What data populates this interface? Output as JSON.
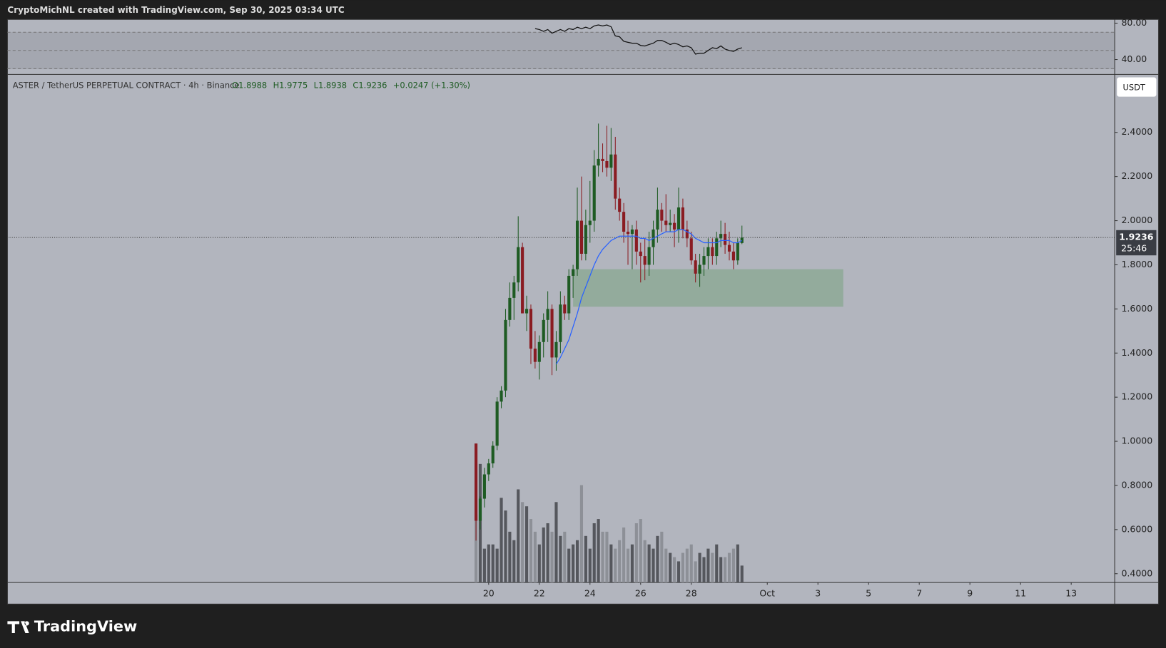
{
  "header": {
    "caption": "CryptoMichNL created with TradingView.com, Sep 30, 2025 03:34 UTC",
    "logo": "TradingView"
  },
  "chart_data": {
    "type": "candlestick",
    "symbol": "ASTER / TetherUS PERPETUAL CONTRACT · 4h · Binance",
    "ohlc_labels": [
      "O1.8988",
      "H1.9775",
      "L1.8938",
      "C1.9236",
      "+0.0247 (+1.30%)"
    ],
    "currency": "USDT",
    "last_price": 1.9236,
    "last_price_label": "1.9236",
    "countdown": "25:46",
    "up_color": "#1e5b23",
    "down_color": "#8a1c22",
    "ma_color": "#2962ff",
    "zone_color": "#8da996",
    "candles": [
      [
        0.99,
        0.99,
        0.55,
        0.64
      ],
      [
        0.64,
        0.75,
        0.6,
        0.74
      ],
      [
        0.74,
        0.88,
        0.7,
        0.85
      ],
      [
        0.85,
        0.92,
        0.82,
        0.9
      ],
      [
        0.9,
        1.0,
        0.88,
        0.98
      ],
      [
        0.98,
        1.2,
        0.96,
        1.18
      ],
      [
        1.18,
        1.25,
        1.15,
        1.23
      ],
      [
        1.23,
        1.6,
        1.2,
        1.55
      ],
      [
        1.55,
        1.72,
        1.52,
        1.65
      ],
      [
        1.65,
        1.75,
        1.55,
        1.72
      ],
      [
        1.72,
        2.02,
        1.68,
        1.88
      ],
      [
        1.88,
        1.9,
        1.58,
        1.58
      ],
      [
        1.58,
        1.66,
        1.5,
        1.6
      ],
      [
        1.6,
        1.62,
        1.35,
        1.42
      ],
      [
        1.42,
        1.5,
        1.33,
        1.36
      ],
      [
        1.36,
        1.48,
        1.28,
        1.45
      ],
      [
        1.45,
        1.58,
        1.38,
        1.55
      ],
      [
        1.55,
        1.68,
        1.45,
        1.6
      ],
      [
        1.6,
        1.62,
        1.3,
        1.38
      ],
      [
        1.38,
        1.5,
        1.32,
        1.45
      ],
      [
        1.45,
        1.68,
        1.4,
        1.62
      ],
      [
        1.62,
        1.66,
        1.55,
        1.58
      ],
      [
        1.58,
        1.78,
        1.55,
        1.75
      ],
      [
        1.75,
        1.8,
        1.65,
        1.78
      ],
      [
        1.78,
        2.15,
        1.75,
        2.0
      ],
      [
        2.0,
        2.2,
        1.82,
        1.85
      ],
      [
        1.85,
        2.05,
        1.82,
        1.98
      ],
      [
        1.98,
        2.18,
        1.9,
        2.0
      ],
      [
        2.0,
        2.32,
        1.95,
        2.25
      ],
      [
        2.25,
        2.44,
        2.2,
        2.28
      ],
      [
        2.28,
        2.35,
        2.22,
        2.27
      ],
      [
        2.27,
        2.43,
        2.2,
        2.24
      ],
      [
        2.24,
        2.42,
        2.18,
        2.3
      ],
      [
        2.3,
        2.38,
        2.05,
        2.1
      ],
      [
        2.1,
        2.15,
        2.0,
        2.04
      ],
      [
        2.04,
        2.08,
        1.9,
        1.95
      ],
      [
        1.95,
        2.0,
        1.8,
        1.94
      ],
      [
        1.94,
        1.98,
        1.78,
        1.96
      ],
      [
        1.96,
        2.0,
        1.8,
        1.86
      ],
      [
        1.86,
        1.9,
        1.72,
        1.84
      ],
      [
        1.84,
        1.92,
        1.73,
        1.8
      ],
      [
        1.8,
        1.95,
        1.75,
        1.88
      ],
      [
        1.88,
        2.0,
        1.8,
        1.96
      ],
      [
        1.96,
        2.15,
        1.9,
        2.05
      ],
      [
        2.05,
        2.08,
        1.95,
        2.0
      ],
      [
        2.0,
        2.12,
        1.95,
        1.98
      ],
      [
        1.98,
        2.05,
        1.95,
        1.99
      ],
      [
        1.99,
        2.03,
        1.88,
        1.96
      ],
      [
        1.96,
        2.15,
        1.9,
        2.06
      ],
      [
        2.06,
        2.1,
        1.92,
        1.96
      ],
      [
        1.96,
        2.0,
        1.88,
        1.92
      ],
      [
        1.92,
        1.95,
        1.8,
        1.82
      ],
      [
        1.82,
        1.85,
        1.72,
        1.76
      ],
      [
        1.76,
        1.85,
        1.7,
        1.8
      ],
      [
        1.8,
        1.88,
        1.75,
        1.84
      ],
      [
        1.84,
        1.92,
        1.78,
        1.88
      ],
      [
        1.88,
        1.92,
        1.8,
        1.84
      ],
      [
        1.84,
        1.95,
        1.8,
        1.92
      ],
      [
        1.92,
        2.0,
        1.88,
        1.94
      ],
      [
        1.94,
        1.99,
        1.85,
        1.89
      ],
      [
        1.89,
        1.95,
        1.82,
        1.86
      ],
      [
        1.86,
        1.9,
        1.78,
        1.82
      ],
      [
        1.82,
        1.92,
        1.8,
        1.9
      ],
      [
        1.8988,
        1.9775,
        1.8938,
        1.9236
      ]
    ],
    "volume": [
      80,
      140,
      40,
      45,
      45,
      40,
      100,
      85,
      60,
      50,
      110,
      95,
      90,
      75,
      60,
      45,
      65,
      70,
      60,
      95,
      55,
      60,
      40,
      45,
      50,
      115,
      55,
      40,
      70,
      75,
      60,
      60,
      45,
      40,
      50,
      65,
      40,
      45,
      70,
      75,
      50,
      45,
      40,
      55,
      60,
      40,
      35,
      30,
      25,
      35,
      40,
      45,
      25,
      35,
      30,
      40,
      35,
      45,
      30,
      30,
      35,
      40,
      45,
      20
    ],
    "volume_ylim": [
      0,
      600
    ],
    "ma": [
      null,
      null,
      null,
      null,
      null,
      null,
      null,
      null,
      null,
      null,
      null,
      null,
      null,
      null,
      null,
      null,
      null,
      null,
      null,
      1.35,
      1.38,
      1.42,
      1.46,
      1.52,
      1.58,
      1.65,
      1.7,
      1.75,
      1.8,
      1.84,
      1.87,
      1.89,
      1.91,
      1.92,
      1.93,
      1.93,
      1.93,
      1.93,
      1.93,
      1.92,
      1.92,
      1.91,
      1.92,
      1.93,
      1.94,
      1.95,
      1.95,
      1.95,
      1.96,
      1.96,
      1.95,
      1.94,
      1.92,
      1.91,
      1.9,
      1.9,
      1.9,
      1.9,
      1.91,
      1.91,
      1.91,
      1.9,
      1.9,
      1.91
    ],
    "zone": {
      "x": [
        23,
        87
      ],
      "y": [
        1.61,
        1.78
      ]
    },
    "xlim": [
      -111,
      151.3
    ],
    "xticks": [
      {
        "value": 3,
        "label": "20"
      },
      {
        "value": 15,
        "label": "22"
      },
      {
        "value": 27,
        "label": "24"
      },
      {
        "value": 39,
        "label": "26"
      },
      {
        "value": 51,
        "label": "28"
      },
      {
        "value": 69,
        "label": "Oct"
      },
      {
        "value": 81,
        "label": "3"
      },
      {
        "value": 93,
        "label": "5"
      },
      {
        "value": 105,
        "label": "7"
      },
      {
        "value": 117,
        "label": "9"
      },
      {
        "value": 129,
        "label": "11"
      },
      {
        "value": 141,
        "label": "13"
      }
    ],
    "ylim": [
      0.36,
      2.663
    ],
    "yticks": [
      {
        "value": 0.4,
        "label": "0.4000"
      },
      {
        "value": 0.6,
        "label": "0.6000"
      },
      {
        "value": 0.8,
        "label": "0.8000"
      },
      {
        "value": 1.0,
        "label": "1.0000"
      },
      {
        "value": 1.2,
        "label": "1.2000"
      },
      {
        "value": 1.4,
        "label": "1.4000"
      },
      {
        "value": 1.6,
        "label": "1.6000"
      },
      {
        "value": 1.8,
        "label": "1.8000"
      },
      {
        "value": 2.0,
        "label": "2.0000"
      },
      {
        "value": 2.2,
        "label": "2.2000"
      },
      {
        "value": 2.4,
        "label": "2.4000"
      }
    ],
    "rsi": [
      null,
      null,
      null,
      null,
      null,
      null,
      null,
      null,
      null,
      null,
      null,
      null,
      null,
      null,
      74,
      73,
      71,
      73,
      69,
      71,
      73,
      71,
      74,
      73,
      75.5,
      74,
      75.5,
      74,
      77,
      78,
      77,
      78,
      76,
      66,
      65,
      60,
      59,
      58,
      58,
      55.5,
      55,
      56.5,
      58,
      61,
      61,
      59,
      56.5,
      58,
      56.5,
      54,
      55,
      53,
      46,
      47,
      47,
      50,
      53,
      52,
      55,
      51.5,
      50,
      49,
      51.5,
      53
    ],
    "rsi_ylim": [
      23.7,
      84.1
    ],
    "rsi_yticks": [
      {
        "value": 80,
        "label": "80.00"
      },
      {
        "value": 40,
        "label": "40.00"
      }
    ],
    "rsi_levels": [
      70,
      50,
      30
    ]
  }
}
